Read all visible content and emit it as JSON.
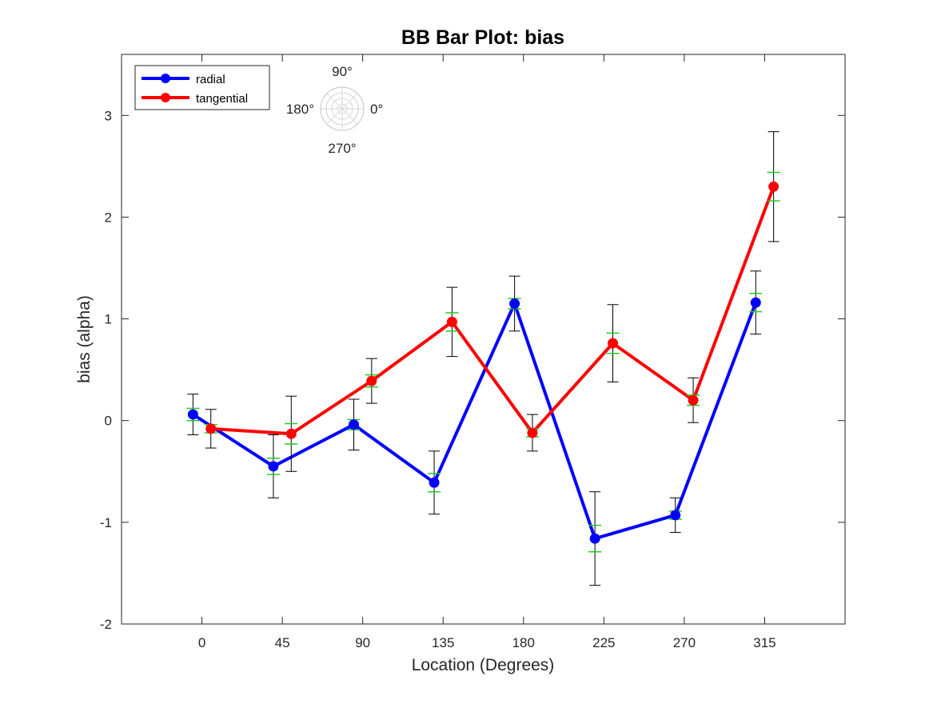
{
  "chart_data": {
    "type": "line",
    "title": "BB Bar Plot: bias",
    "xlabel": "Location (Degrees)",
    "ylabel": "bias (alpha)",
    "categories": [
      "0",
      "45",
      "90",
      "135",
      "180",
      "225",
      "270",
      "315"
    ],
    "ylim": [
      -2,
      3.6
    ],
    "yticks": [
      "-2",
      "-1",
      "0",
      "1",
      "2",
      "3"
    ],
    "grid": false,
    "legend_position": "top-left",
    "series": [
      {
        "name": "radial",
        "color": "#0000ff",
        "x": [
          -5,
          40,
          85,
          130,
          175,
          220,
          265,
          310
        ],
        "values": [
          0.06,
          -0.45,
          -0.04,
          -0.61,
          1.15,
          -1.16,
          -0.93,
          1.16
        ],
        "err_black": [
          0.2,
          0.31,
          0.25,
          0.31,
          0.27,
          0.46,
          0.17,
          0.31
        ],
        "err_green": [
          0.06,
          0.08,
          0.05,
          0.09,
          0.05,
          0.13,
          0.04,
          0.09
        ]
      },
      {
        "name": "tangential",
        "color": "#ff0000",
        "x": [
          5,
          50,
          95,
          140,
          185,
          230,
          275,
          320
        ],
        "values": [
          -0.08,
          -0.13,
          0.39,
          0.97,
          -0.12,
          0.76,
          0.2,
          2.3
        ],
        "err_black": [
          0.19,
          0.37,
          0.22,
          0.34,
          0.18,
          0.38,
          0.22,
          0.54
        ],
        "err_green": [
          0.04,
          0.1,
          0.06,
          0.09,
          0.04,
          0.1,
          0.05,
          0.14
        ]
      }
    ],
    "inset": {
      "labels": {
        "top": "90°",
        "left": "180°",
        "right": "0°",
        "bottom": "270°"
      }
    }
  }
}
